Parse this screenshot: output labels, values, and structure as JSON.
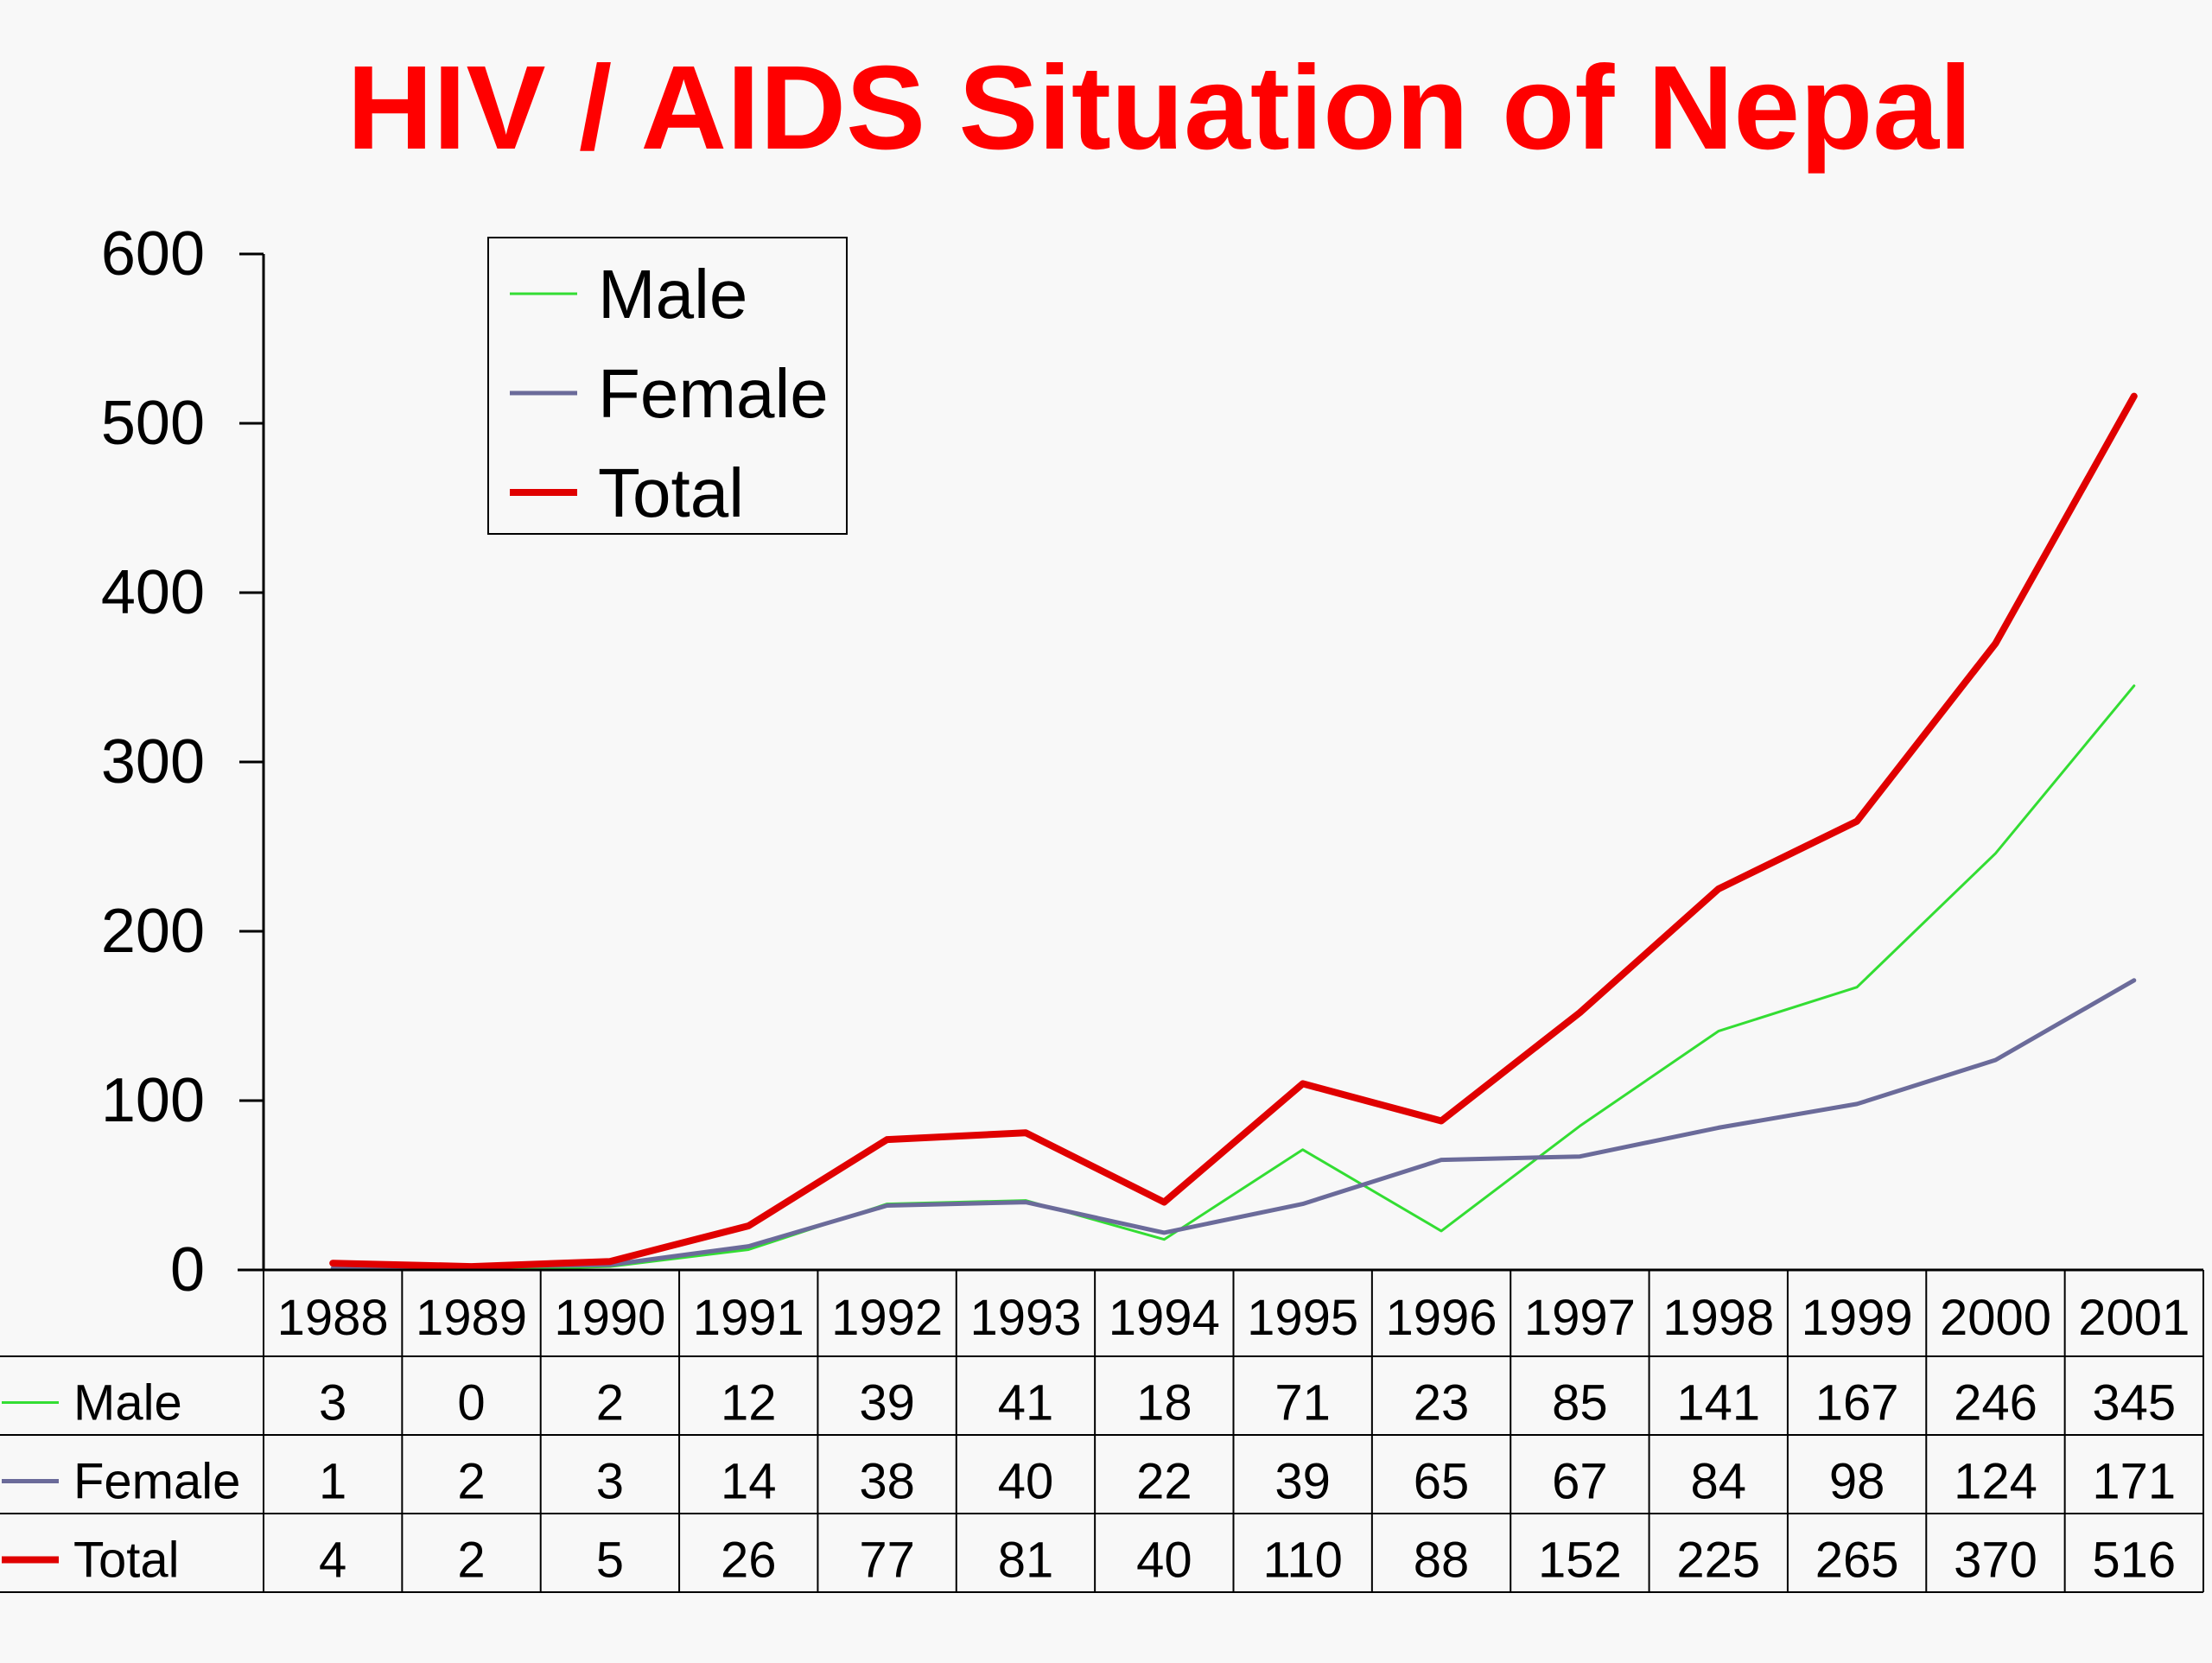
{
  "chart_data": {
    "type": "line",
    "title": "HIV / AIDS Situation of Nepal",
    "xlabel": "",
    "ylabel": "",
    "categories": [
      "1988",
      "1989",
      "1990",
      "1991",
      "1992",
      "1993",
      "1994",
      "1995",
      "1996",
      "1997",
      "1998",
      "1999",
      "2000",
      "2001"
    ],
    "ylim": [
      0,
      600
    ],
    "yticks": [
      "0",
      "100",
      "200",
      "300",
      "400",
      "500",
      "600"
    ],
    "grid": false,
    "legend_position": "top-left",
    "data_table": true,
    "series": [
      {
        "name": "Male",
        "color": "#33dd33",
        "values": [
          3,
          0,
          2,
          12,
          39,
          41,
          18,
          71,
          23,
          85,
          141,
          167,
          246,
          345
        ]
      },
      {
        "name": "Female",
        "color": "#6b6b9a",
        "values": [
          1,
          2,
          3,
          14,
          38,
          40,
          22,
          39,
          65,
          67,
          84,
          98,
          124,
          171
        ]
      },
      {
        "name": "Total",
        "color": "#e00000",
        "values": [
          4,
          2,
          5,
          26,
          77,
          81,
          40,
          110,
          88,
          152,
          225,
          265,
          370,
          516
        ]
      }
    ],
    "title_color": "#ff0000"
  }
}
